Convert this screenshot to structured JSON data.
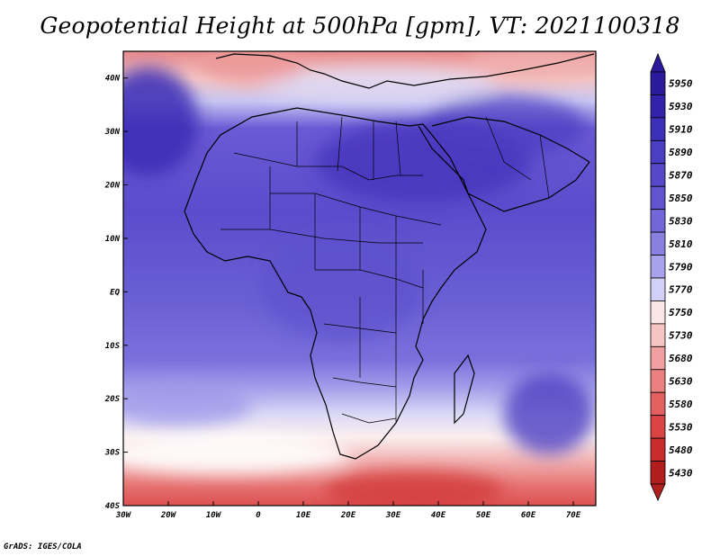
{
  "title": "Geopotential Height at 500hPa [gpm], VT: 2021100318",
  "credit": "GrADS: IGES/COLA",
  "map": {
    "lon_labels": [
      "30W",
      "20W",
      "10W",
      "0",
      "10E",
      "20E",
      "30E",
      "40E",
      "50E",
      "60E",
      "70E"
    ],
    "lat_labels": [
      "40N",
      "30N",
      "20N",
      "10N",
      "EQ",
      "10S",
      "20S",
      "30S",
      "40S"
    ],
    "lon_range": [
      -30,
      75
    ],
    "lat_range": [
      -40,
      45
    ]
  },
  "colorbar": {
    "levels": [
      "5950",
      "5930",
      "5910",
      "5890",
      "5870",
      "5850",
      "5830",
      "5810",
      "5790",
      "5770",
      "5750",
      "5730",
      "5680",
      "5630",
      "5580",
      "5530",
      "5480",
      "5430"
    ],
    "colors": [
      "#2b1a9c",
      "#3322aa",
      "#3d30b8",
      "#4a3fc2",
      "#5648c9",
      "#6254cf",
      "#7266d8",
      "#8a80e0",
      "#a8a2ea",
      "#d2d0f6",
      "#fbe6e6",
      "#f6c4c4",
      "#f0a0a0",
      "#ea8080",
      "#e36060",
      "#da4444",
      "#c82c2c",
      "#b01e1e"
    ]
  }
}
